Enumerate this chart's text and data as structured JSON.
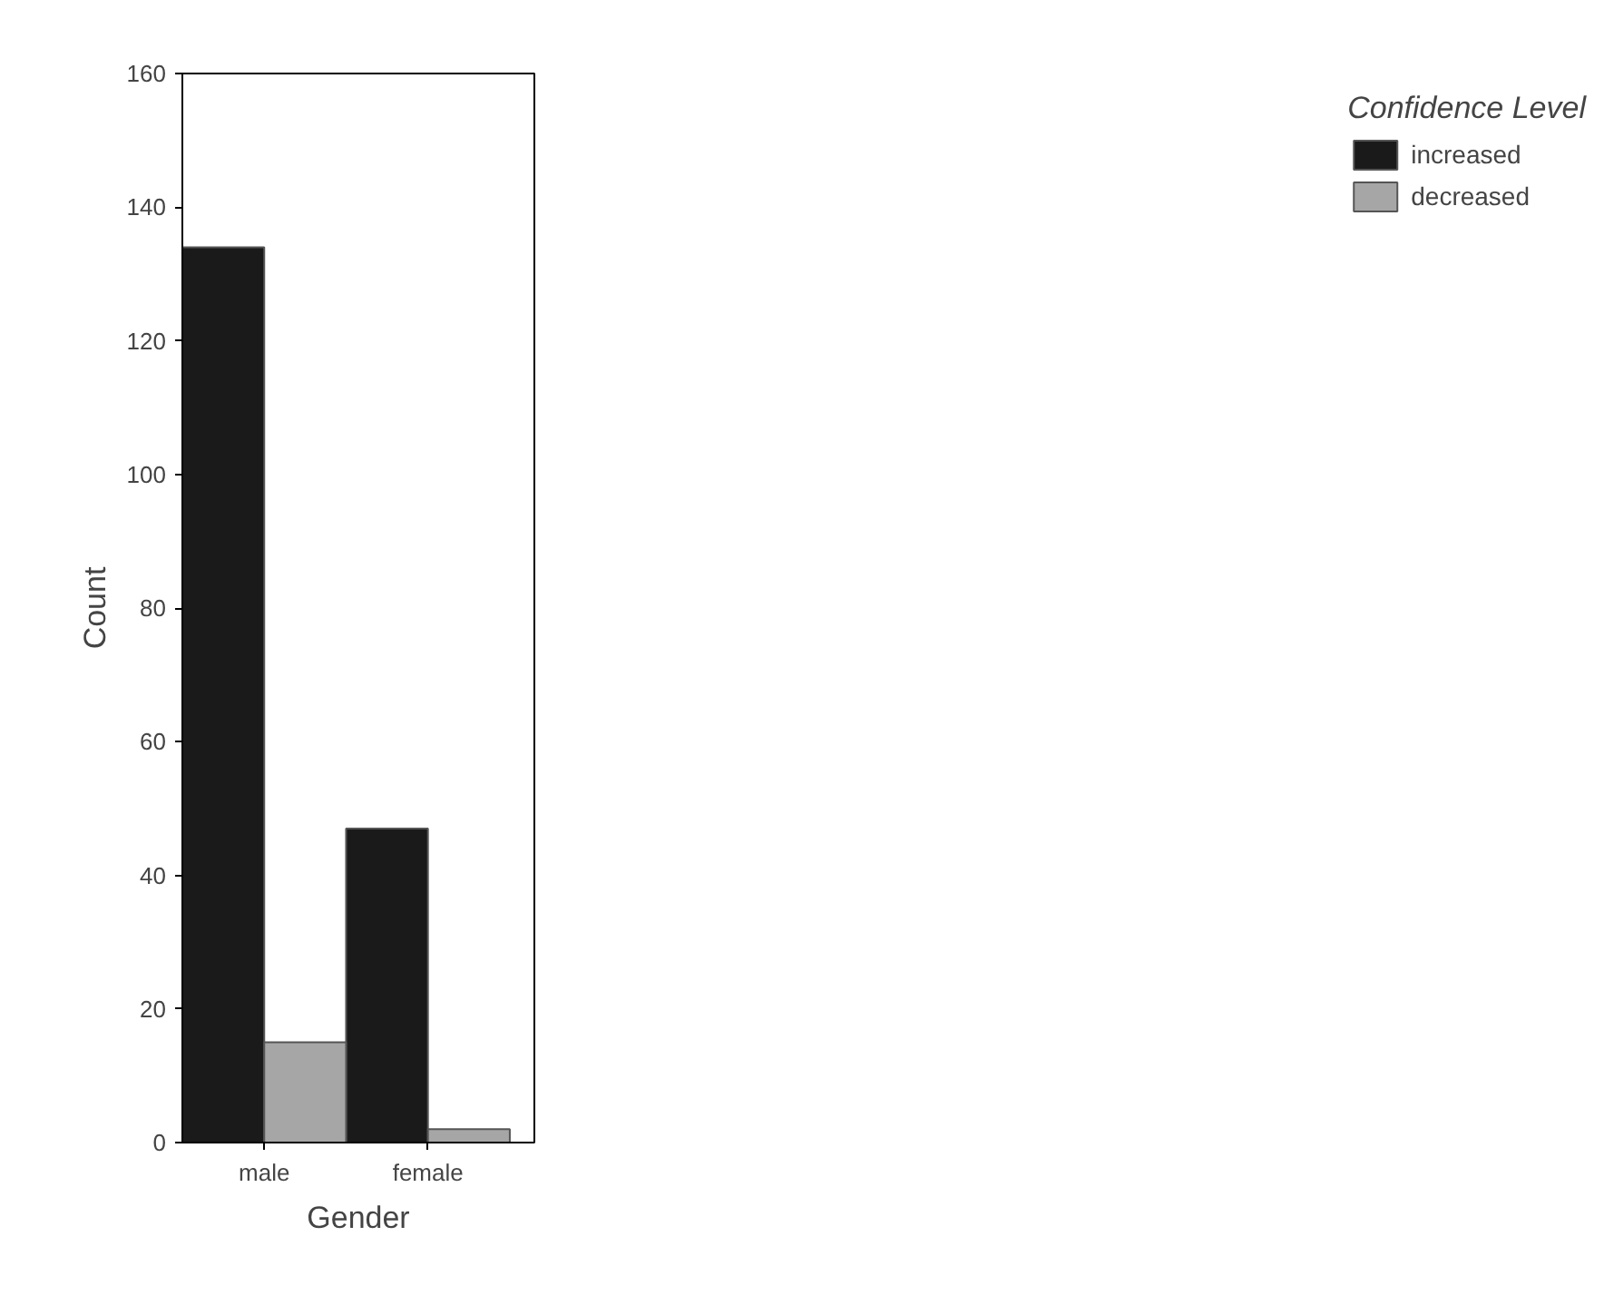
{
  "chart_data": {
    "type": "bar",
    "xlabel": "Gender",
    "ylabel": "Count",
    "legend_title": "Confidence Level",
    "categories": [
      "male",
      "female"
    ],
    "series": [
      {
        "name": "increased",
        "color": "#1a1a1a",
        "values": [
          134,
          47
        ]
      },
      {
        "name": "decreased",
        "color": "#a6a6a6",
        "values": [
          15,
          2
        ]
      }
    ],
    "ylim": [
      0,
      160
    ],
    "yticks": [
      0,
      20,
      40,
      60,
      80,
      100,
      120,
      140,
      160
    ],
    "grid": false,
    "legend": "right"
  }
}
